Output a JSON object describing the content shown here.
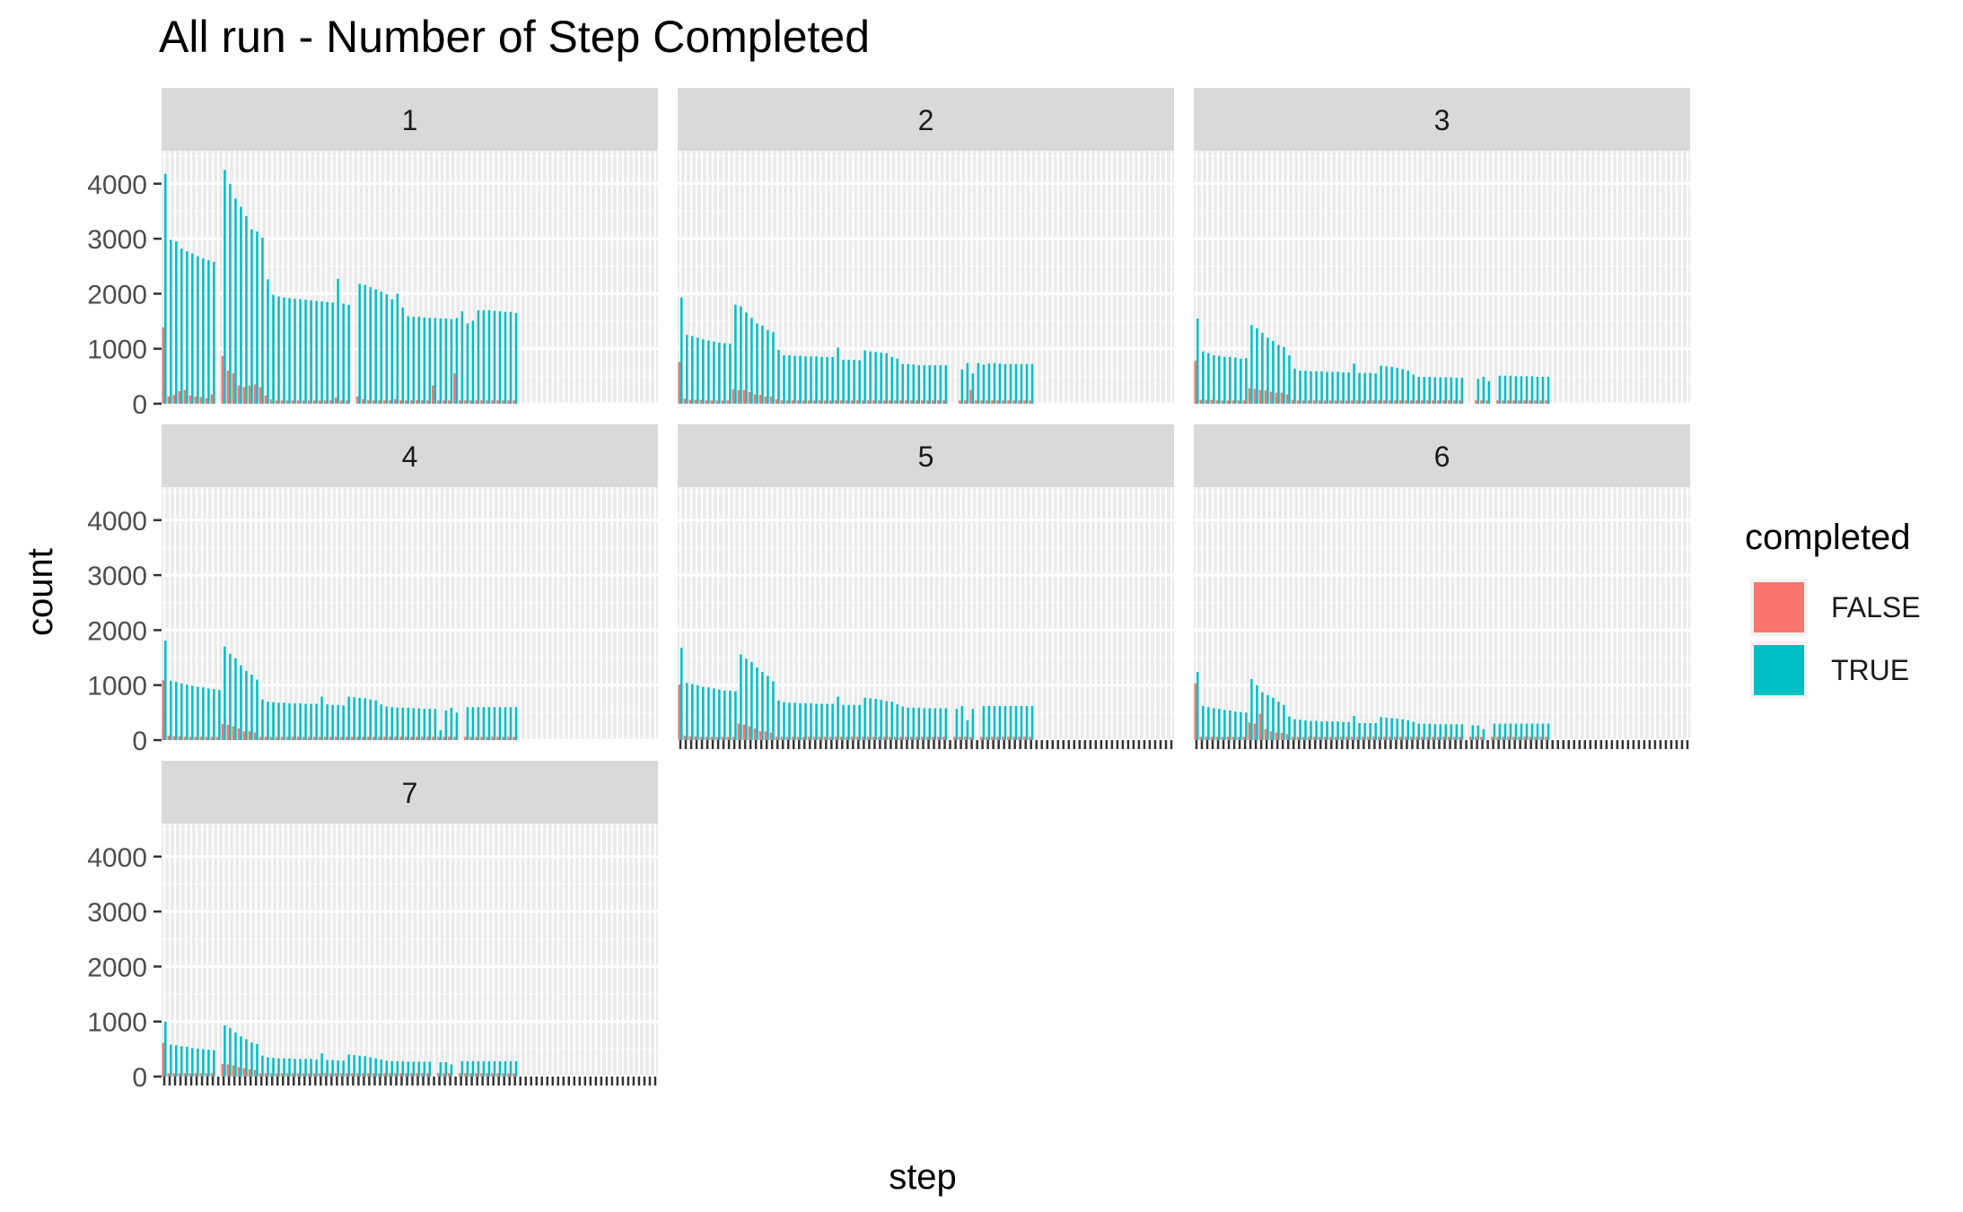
{
  "chart_data": {
    "type": "bar",
    "title": "All run - Number of Step Completed",
    "xlabel": "step",
    "ylabel": "count",
    "ylim": [
      0,
      4600
    ],
    "yticks": [
      0,
      1000,
      2000,
      3000,
      4000
    ],
    "grid": true,
    "legend": {
      "title": "completed",
      "position": "right",
      "entries": [
        {
          "label": "FALSE",
          "color": "#F8766D"
        },
        {
          "label": "TRUE",
          "color": "#00BFC4"
        }
      ]
    },
    "step_count": 92,
    "panels": [
      {
        "label": "1",
        "true": [
          4180,
          2980,
          2950,
          2820,
          2770,
          2730,
          2680,
          2640,
          2610,
          2580,
          0,
          4250,
          4000,
          3730,
          3580,
          3410,
          3170,
          3130,
          3020,
          2260,
          1980,
          1950,
          1930,
          1920,
          1910,
          1900,
          1890,
          1880,
          1870,
          1860,
          1850,
          1840,
          2270,
          1820,
          1800,
          0,
          2180,
          2160,
          2120,
          2080,
          2040,
          1990,
          1900,
          2000,
          1750,
          1590,
          1580,
          1580,
          1570,
          1560,
          1560,
          1550,
          1550,
          1540,
          1560,
          1680,
          1460,
          1510,
          1700,
          1700,
          1700,
          1690,
          1680,
          1670,
          1670,
          1650
        ],
        "false": [
          1390,
          130,
          160,
          230,
          250,
          150,
          130,
          120,
          100,
          170,
          0,
          870,
          600,
          550,
          330,
          300,
          330,
          350,
          300,
          150,
          80,
          60,
          60,
          60,
          60,
          60,
          60,
          60,
          60,
          60,
          60,
          60,
          110,
          60,
          60,
          0,
          130,
          80,
          60,
          60,
          60,
          60,
          60,
          80,
          60,
          60,
          60,
          60,
          60,
          60,
          330,
          60,
          60,
          60,
          550,
          60,
          60,
          60,
          60,
          60,
          60,
          60,
          60,
          60,
          60,
          60
        ]
      },
      {
        "label": "2",
        "true": [
          1930,
          1250,
          1230,
          1200,
          1170,
          1150,
          1130,
          1110,
          1100,
          1090,
          1800,
          1770,
          1660,
          1560,
          1460,
          1420,
          1340,
          1300,
          980,
          880,
          880,
          870,
          870,
          860,
          860,
          860,
          850,
          850,
          850,
          1020,
          800,
          800,
          800,
          790,
          970,
          950,
          940,
          930,
          920,
          850,
          820,
          720,
          720,
          710,
          700,
          700,
          700,
          700,
          700,
          700,
          0,
          0,
          620,
          740,
          550,
          740,
          710,
          730,
          740,
          730,
          720,
          720,
          720,
          720,
          720,
          720
        ],
        "false": [
          760,
          90,
          70,
          70,
          70,
          60,
          60,
          60,
          60,
          60,
          260,
          250,
          250,
          210,
          170,
          160,
          130,
          130,
          80,
          60,
          60,
          60,
          60,
          60,
          60,
          60,
          60,
          60,
          60,
          60,
          60,
          60,
          60,
          60,
          60,
          60,
          60,
          60,
          60,
          60,
          60,
          60,
          60,
          60,
          60,
          60,
          60,
          60,
          60,
          60,
          0,
          0,
          60,
          60,
          250,
          60,
          60,
          60,
          60,
          60,
          60,
          60,
          60,
          60,
          60,
          60
        ]
      },
      {
        "label": "3",
        "true": [
          1550,
          950,
          920,
          880,
          870,
          850,
          850,
          840,
          820,
          830,
          1430,
          1370,
          1290,
          1200,
          1140,
          1070,
          1030,
          880,
          640,
          600,
          600,
          590,
          590,
          590,
          580,
          580,
          580,
          570,
          570,
          730,
          560,
          560,
          560,
          550,
          690,
          680,
          670,
          650,
          630,
          600,
          530,
          490,
          490,
          490,
          480,
          480,
          480,
          480,
          470,
          470,
          0,
          0,
          450,
          490,
          410,
          0,
          510,
          510,
          510,
          500,
          500,
          500,
          500,
          490,
          490,
          490
        ],
        "false": [
          780,
          70,
          70,
          70,
          60,
          60,
          60,
          60,
          60,
          60,
          280,
          270,
          250,
          240,
          220,
          200,
          200,
          170,
          70,
          60,
          60,
          60,
          60,
          60,
          60,
          60,
          60,
          60,
          60,
          60,
          60,
          60,
          60,
          60,
          60,
          60,
          60,
          60,
          60,
          60,
          60,
          60,
          60,
          60,
          60,
          60,
          60,
          60,
          60,
          60,
          0,
          0,
          60,
          60,
          60,
          0,
          60,
          60,
          60,
          60,
          60,
          60,
          60,
          60,
          60,
          60
        ]
      },
      {
        "label": "4",
        "true": [
          1810,
          1080,
          1060,
          1030,
          1010,
          990,
          970,
          960,
          940,
          930,
          910,
          1700,
          1570,
          1490,
          1360,
          1260,
          1190,
          1100,
          740,
          700,
          690,
          680,
          680,
          670,
          670,
          670,
          660,
          660,
          660,
          790,
          650,
          640,
          640,
          630,
          790,
          780,
          770,
          760,
          740,
          720,
          650,
          610,
          600,
          590,
          590,
          590,
          580,
          580,
          570,
          570,
          570,
          180,
          540,
          590,
          500,
          0,
          600,
          600,
          600,
          600,
          600,
          600,
          600,
          600,
          600,
          600
        ],
        "false": [
          1090,
          80,
          70,
          70,
          60,
          60,
          60,
          60,
          60,
          60,
          60,
          290,
          280,
          250,
          210,
          160,
          160,
          140,
          60,
          60,
          60,
          60,
          60,
          60,
          60,
          60,
          60,
          60,
          60,
          60,
          60,
          60,
          60,
          60,
          60,
          60,
          60,
          60,
          60,
          60,
          60,
          60,
          60,
          60,
          60,
          60,
          60,
          60,
          60,
          60,
          60,
          60,
          60,
          60,
          60,
          0,
          60,
          60,
          60,
          60,
          60,
          60,
          60,
          60,
          60,
          60
        ]
      },
      {
        "label": "5",
        "true": [
          1680,
          1040,
          1020,
          1000,
          970,
          960,
          940,
          920,
          900,
          900,
          890,
          1560,
          1480,
          1420,
          1320,
          1240,
          1170,
          1070,
          720,
          690,
          680,
          680,
          670,
          670,
          670,
          660,
          660,
          660,
          660,
          790,
          640,
          640,
          640,
          640,
          770,
          760,
          750,
          730,
          710,
          700,
          650,
          610,
          590,
          590,
          590,
          580,
          580,
          580,
          580,
          580,
          0,
          570,
          620,
          360,
          570,
          0,
          620,
          620,
          620,
          620,
          620,
          620,
          620,
          620,
          620,
          620
        ],
        "false": [
          1010,
          80,
          70,
          70,
          60,
          60,
          60,
          60,
          60,
          60,
          60,
          300,
          280,
          250,
          210,
          160,
          160,
          140,
          60,
          60,
          60,
          60,
          60,
          60,
          60,
          60,
          60,
          60,
          60,
          60,
          60,
          60,
          60,
          60,
          60,
          60,
          60,
          60,
          60,
          60,
          60,
          60,
          60,
          60,
          60,
          60,
          60,
          60,
          60,
          60,
          0,
          60,
          60,
          60,
          60,
          0,
          60,
          60,
          60,
          60,
          60,
          60,
          60,
          60,
          60,
          60
        ]
      },
      {
        "label": "6",
        "true": [
          1240,
          620,
          600,
          580,
          570,
          550,
          540,
          520,
          510,
          500,
          1110,
          1000,
          870,
          820,
          770,
          700,
          640,
          430,
          380,
          370,
          360,
          350,
          350,
          340,
          340,
          340,
          340,
          330,
          330,
          440,
          310,
          310,
          310,
          310,
          420,
          410,
          400,
          390,
          380,
          360,
          330,
          300,
          300,
          300,
          290,
          290,
          290,
          290,
          290,
          290,
          0,
          270,
          270,
          200,
          0,
          300,
          300,
          300,
          300,
          300,
          300,
          300,
          300,
          300,
          300,
          300
        ],
        "false": [
          1030,
          60,
          60,
          60,
          60,
          60,
          60,
          60,
          60,
          60,
          320,
          300,
          480,
          200,
          160,
          140,
          130,
          110,
          60,
          60,
          60,
          60,
          60,
          60,
          60,
          60,
          60,
          60,
          60,
          60,
          60,
          60,
          60,
          60,
          60,
          60,
          60,
          60,
          60,
          60,
          60,
          60,
          60,
          60,
          60,
          60,
          60,
          60,
          60,
          60,
          0,
          60,
          60,
          60,
          0,
          60,
          60,
          60,
          60,
          60,
          60,
          60,
          60,
          60,
          60,
          60
        ]
      },
      {
        "label": "7",
        "true": [
          1000,
          580,
          570,
          550,
          540,
          520,
          510,
          500,
          490,
          480,
          0,
          930,
          880,
          800,
          730,
          680,
          620,
          590,
          380,
          350,
          340,
          330,
          330,
          330,
          320,
          320,
          320,
          320,
          310,
          420,
          300,
          300,
          290,
          290,
          400,
          390,
          380,
          370,
          350,
          330,
          310,
          290,
          280,
          280,
          280,
          270,
          270,
          270,
          270,
          270,
          0,
          260,
          260,
          220,
          0,
          280,
          280,
          280,
          280,
          280,
          280,
          280,
          280,
          280,
          280,
          280
        ],
        "false": [
          610,
          60,
          60,
          60,
          60,
          60,
          60,
          60,
          60,
          60,
          0,
          230,
          220,
          200,
          170,
          150,
          130,
          120,
          60,
          60,
          60,
          60,
          60,
          60,
          60,
          60,
          60,
          60,
          60,
          60,
          60,
          60,
          60,
          60,
          60,
          60,
          60,
          60,
          60,
          60,
          60,
          60,
          60,
          60,
          60,
          60,
          60,
          60,
          60,
          60,
          0,
          60,
          60,
          60,
          0,
          60,
          60,
          60,
          60,
          60,
          60,
          60,
          60,
          60,
          60,
          60
        ]
      }
    ]
  }
}
